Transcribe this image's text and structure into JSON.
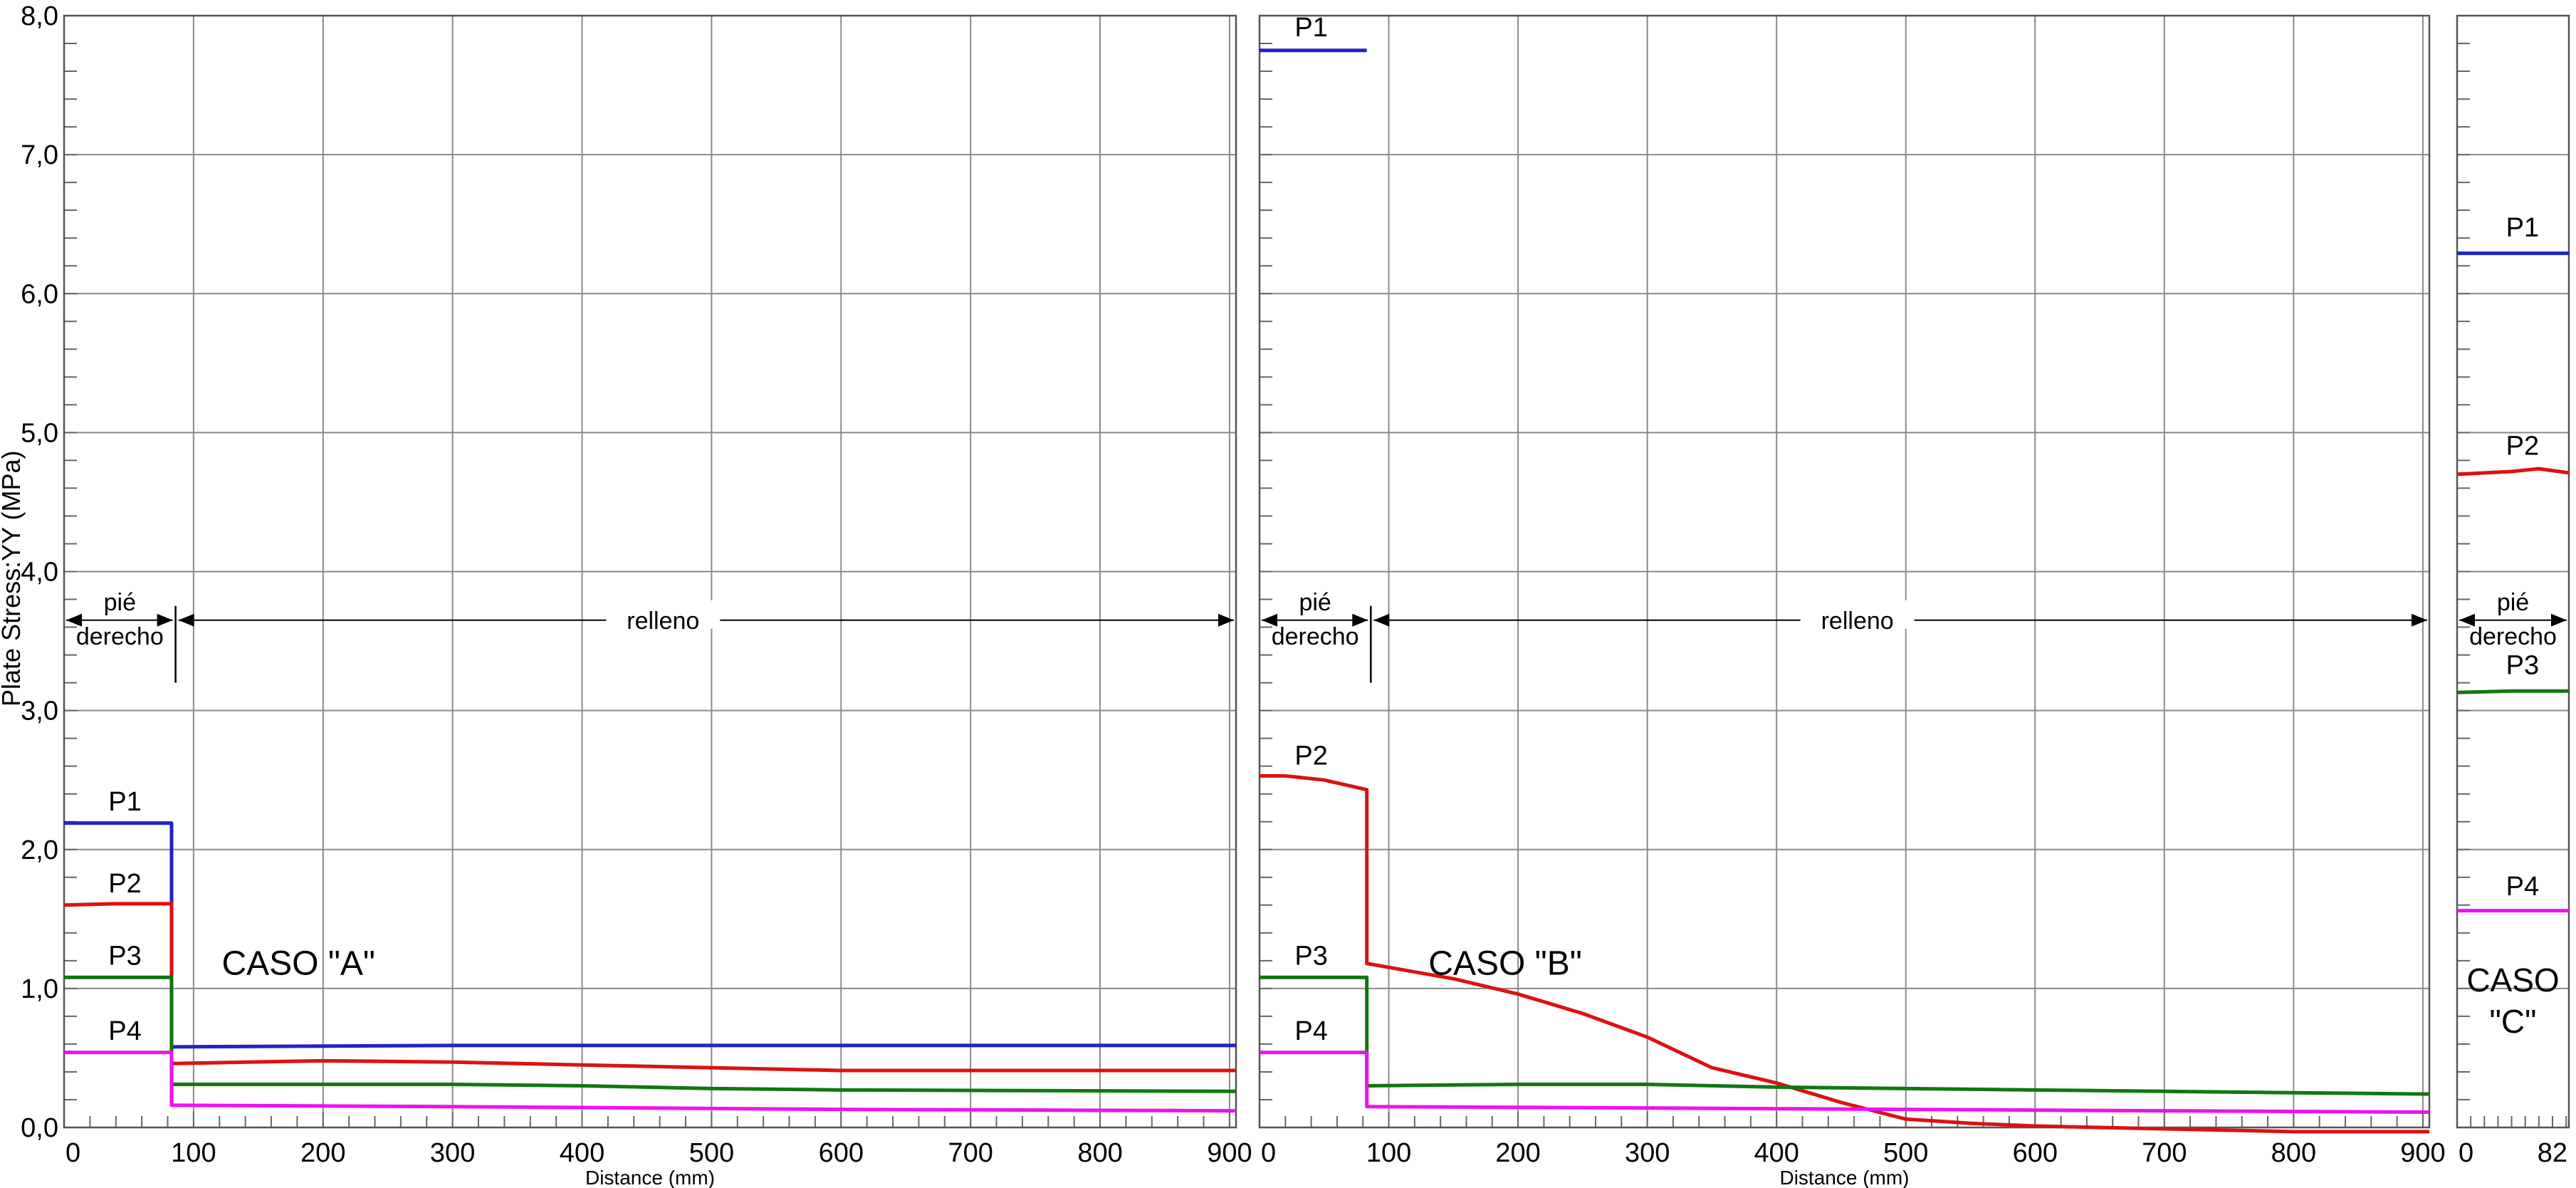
{
  "chart_data": {
    "type": "line",
    "ylabel": "Plate Stress:YY (MPa)",
    "ylim": [
      0,
      8
    ],
    "y_ticks": [
      "0,0",
      "1,0",
      "2,0",
      "3,0",
      "4,0",
      "5,0",
      "6,0",
      "7,0",
      "8,0"
    ],
    "grid": true,
    "panels": [
      {
        "id": "A",
        "xlabel": "Distance (mm)",
        "xlim": [
          0,
          905
        ],
        "x_ticks": [
          "0",
          "100",
          "200",
          "300",
          "400",
          "500",
          "600",
          "700",
          "800",
          "900"
        ],
        "case_label": "CASO \"A\"",
        "zone_left": "pié derecho",
        "zone_right": "relleno",
        "boundary_x": 85,
        "series": [
          {
            "name": "P1",
            "color": "#2222cc",
            "label_at": [
              47,
              2.25
            ],
            "points": [
              [
                0,
                2.19
              ],
              [
                83,
                2.19
              ],
              [
                83,
                0.58
              ],
              [
                300,
                0.59
              ],
              [
                600,
                0.59
              ],
              [
                905,
                0.59
              ]
            ]
          },
          {
            "name": "P2",
            "color": "#dd1111",
            "label_at": [
              47,
              1.66
            ],
            "points": [
              [
                0,
                1.6
              ],
              [
                40,
                1.61
              ],
              [
                83,
                1.61
              ],
              [
                83,
                0.46
              ],
              [
                200,
                0.48
              ],
              [
                300,
                0.47
              ],
              [
                400,
                0.45
              ],
              [
                500,
                0.43
              ],
              [
                600,
                0.41
              ],
              [
                905,
                0.41
              ]
            ]
          },
          {
            "name": "P3",
            "color": "#117711",
            "label_at": [
              47,
              1.14
            ],
            "points": [
              [
                0,
                1.08
              ],
              [
                83,
                1.08
              ],
              [
                83,
                0.31
              ],
              [
                200,
                0.31
              ],
              [
                300,
                0.31
              ],
              [
                400,
                0.3
              ],
              [
                500,
                0.28
              ],
              [
                600,
                0.27
              ],
              [
                905,
                0.26
              ]
            ]
          },
          {
            "name": "P4",
            "color": "#ee11ee",
            "label_at": [
              47,
              0.6
            ],
            "points": [
              [
                0,
                0.54
              ],
              [
                83,
                0.54
              ],
              [
                83,
                0.16
              ],
              [
                300,
                0.15
              ],
              [
                600,
                0.13
              ],
              [
                905,
                0.12
              ]
            ]
          }
        ]
      },
      {
        "id": "B",
        "xlabel": "Distance (mm)",
        "xlim": [
          0,
          905
        ],
        "x_ticks": [
          "0",
          "100",
          "200",
          "300",
          "400",
          "500",
          "600",
          "700",
          "800",
          "900"
        ],
        "case_label": "CASO \"B\"",
        "zone_left": "pié derecho",
        "zone_right": "relleno",
        "boundary_x": 85,
        "series": [
          {
            "name": "P1",
            "color": "#2222cc",
            "label_at": [
              40,
              7.82
            ],
            "points": [
              [
                0,
                7.75
              ],
              [
                83,
                7.75
              ]
            ]
          },
          {
            "name": "P2",
            "color": "#dd1111",
            "label_at": [
              40,
              2.58
            ],
            "points": [
              [
                0,
                2.53
              ],
              [
                20,
                2.53
              ],
              [
                50,
                2.5
              ],
              [
                83,
                2.43
              ],
              [
                83,
                1.18
              ],
              [
                150,
                1.07
              ],
              [
                200,
                0.96
              ],
              [
                250,
                0.82
              ],
              [
                300,
                0.65
              ],
              [
                350,
                0.43
              ],
              [
                400,
                0.32
              ],
              [
                450,
                0.18
              ],
              [
                500,
                0.06
              ],
              [
                550,
                0.03
              ],
              [
                600,
                0.01
              ],
              [
                700,
                -0.01
              ],
              [
                800,
                -0.03
              ],
              [
                905,
                -0.03
              ]
            ]
          },
          {
            "name": "P3",
            "color": "#117711",
            "label_at": [
              40,
              1.14
            ],
            "points": [
              [
                0,
                1.08
              ],
              [
                83,
                1.08
              ],
              [
                83,
                0.3
              ],
              [
                200,
                0.31
              ],
              [
                300,
                0.31
              ],
              [
                400,
                0.29
              ],
              [
                500,
                0.28
              ],
              [
                600,
                0.27
              ],
              [
                700,
                0.26
              ],
              [
                800,
                0.25
              ],
              [
                905,
                0.24
              ]
            ]
          },
          {
            "name": "P4",
            "color": "#ee11ee",
            "label_at": [
              40,
              0.6
            ],
            "points": [
              [
                0,
                0.54
              ],
              [
                83,
                0.54
              ],
              [
                83,
                0.15
              ],
              [
                300,
                0.14
              ],
              [
                500,
                0.13
              ],
              [
                700,
                0.12
              ],
              [
                905,
                0.11
              ]
            ]
          }
        ]
      },
      {
        "id": "C",
        "xlim": [
          0,
          82
        ],
        "x_ticks": [
          "0",
          "82"
        ],
        "case_label": "CASO \"C\"",
        "zone_left": "pié derecho",
        "series": [
          {
            "name": "P1",
            "color": "#2222cc",
            "label_at": [
              48,
              6.38
            ],
            "points": [
              [
                0,
                6.29
              ],
              [
                82,
                6.29
              ]
            ]
          },
          {
            "name": "P2",
            "color": "#dd1111",
            "label_at": [
              48,
              4.81
            ],
            "points": [
              [
                0,
                4.7
              ],
              [
                40,
                4.72
              ],
              [
                60,
                4.74
              ],
              [
                82,
                4.71
              ]
            ]
          },
          {
            "name": "P3",
            "color": "#117711",
            "label_at": [
              48,
              3.23
            ],
            "points": [
              [
                0,
                3.13
              ],
              [
                40,
                3.14
              ],
              [
                82,
                3.14
              ]
            ]
          },
          {
            "name": "P4",
            "color": "#ee11ee",
            "label_at": [
              48,
              1.64
            ],
            "points": [
              [
                0,
                1.56
              ],
              [
                82,
                1.56
              ]
            ]
          }
        ]
      }
    ]
  }
}
